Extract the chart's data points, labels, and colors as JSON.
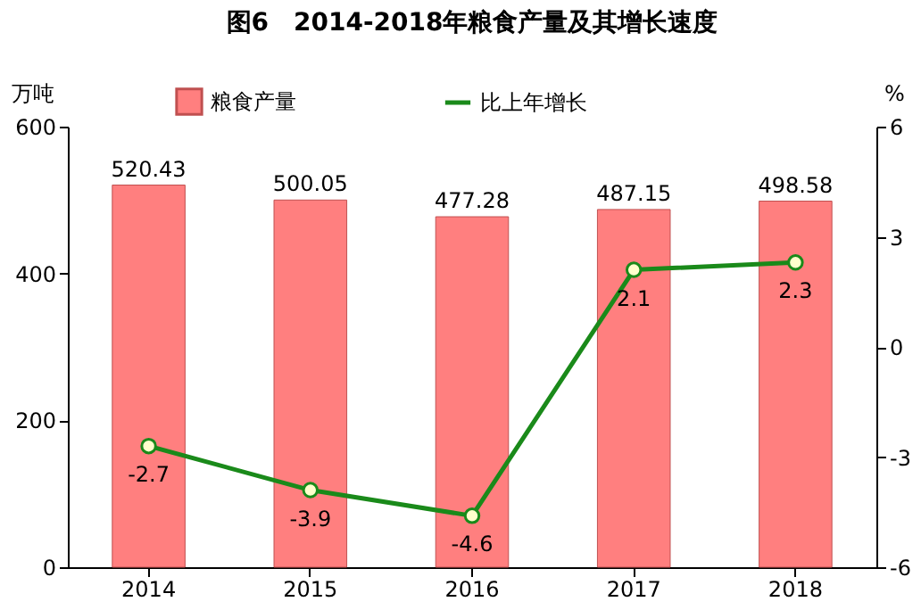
{
  "chart_data": {
    "type": "bar",
    "title": "图6　2014-2018年粮食产量及其增长速度",
    "ylabel": "万吨",
    "y2label": "%",
    "categories": [
      "2014",
      "2015",
      "2016",
      "2017",
      "2018"
    ],
    "series": [
      {
        "name": "粮食产量",
        "color": "#ff7f7f",
        "values": [
          520.43,
          500.05,
          477.28,
          487.15,
          498.58
        ]
      },
      {
        "name": "比上年增长",
        "type": "line",
        "axis": "y2",
        "color": "#1a8a1a",
        "marker": "circle",
        "values": [
          -2.7,
          -3.9,
          -4.6,
          2.1,
          2.3
        ]
      }
    ],
    "ylim": [
      0,
      600
    ],
    "yticks": [
      0,
      200,
      400,
      600
    ],
    "y2lim": [
      -6,
      6
    ],
    "y2ticks": [
      -6,
      -3,
      0,
      3,
      6
    ],
    "data_labels": true,
    "legend": "top",
    "grid": false
  }
}
